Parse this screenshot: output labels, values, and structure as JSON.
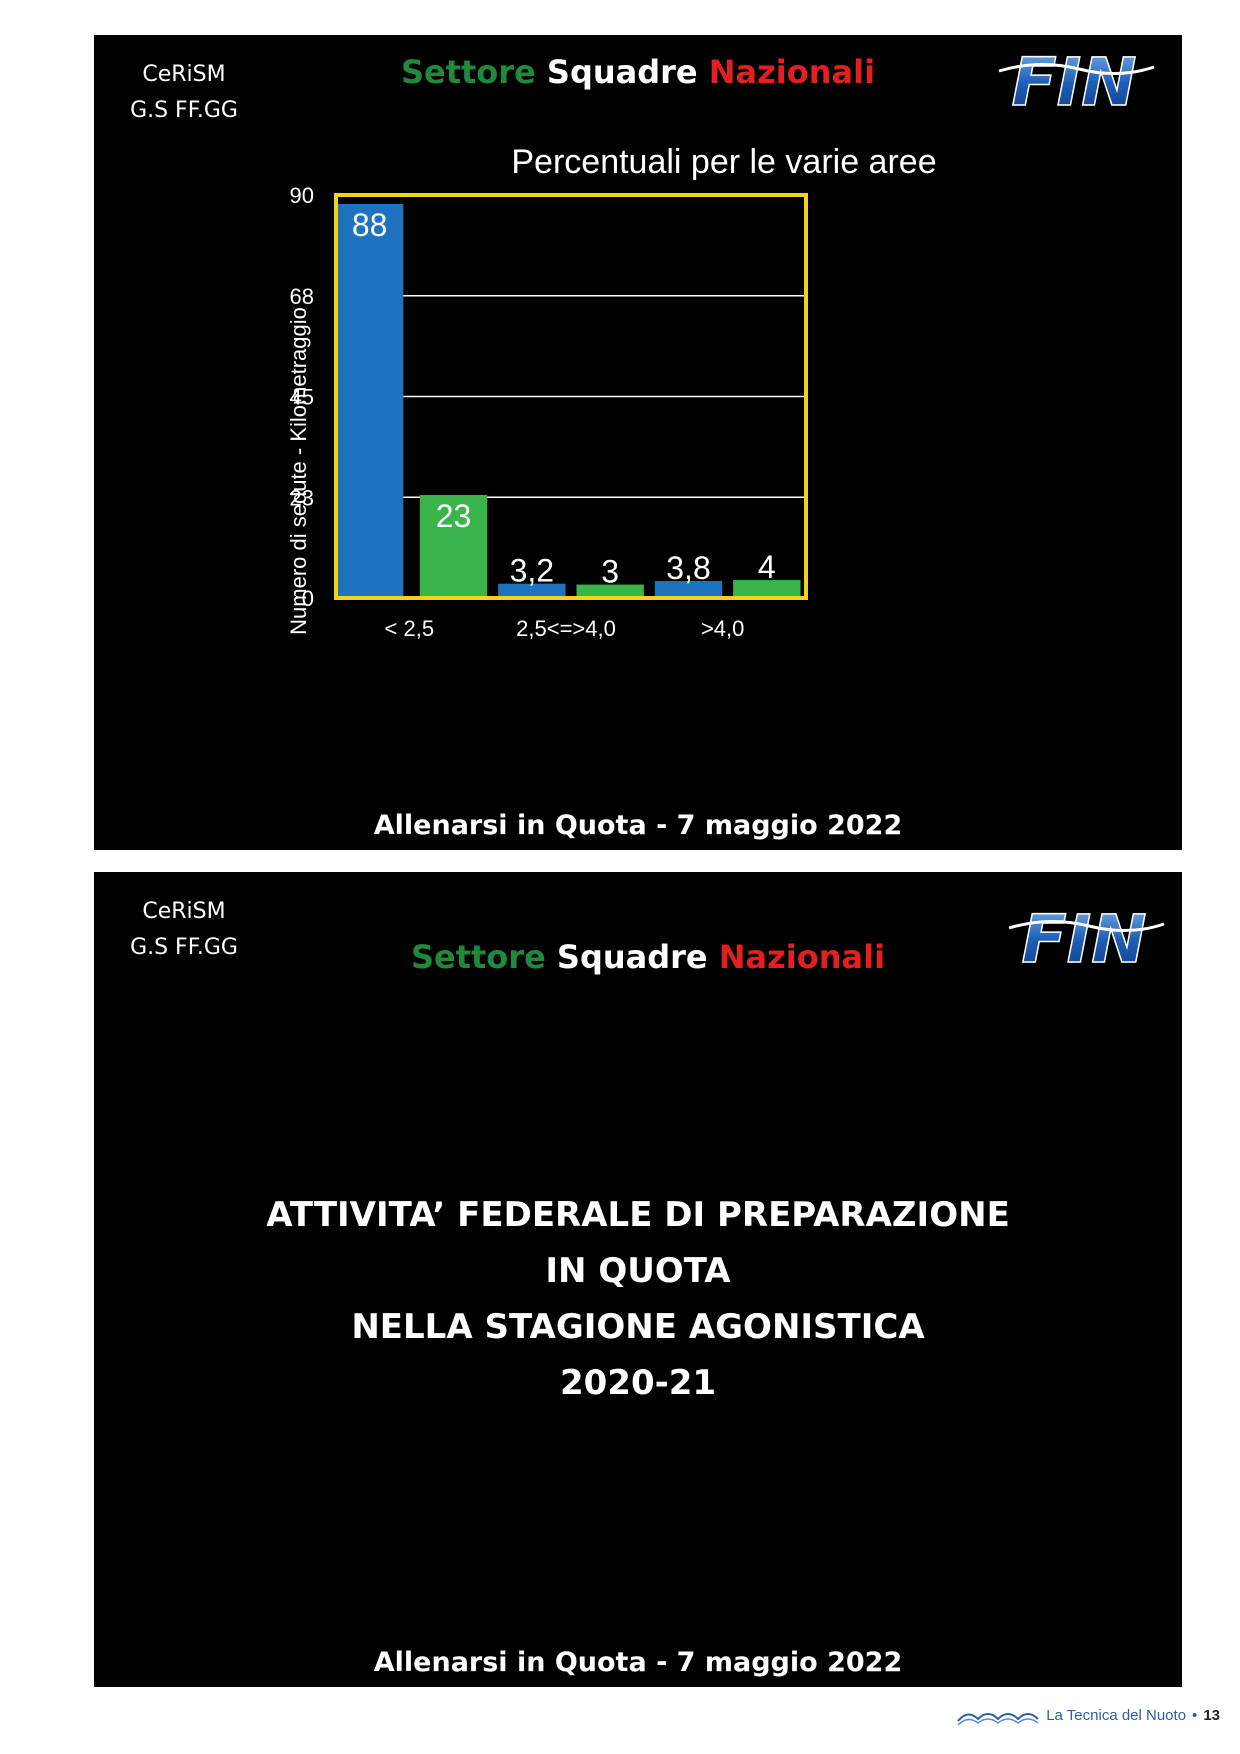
{
  "slide1": {
    "org_line1": "CeRiSM",
    "org_line2": "G.S FF.GG",
    "sector": {
      "w1": "Settore",
      "w2": "Squadre",
      "w3": "Nazionali"
    },
    "logo_text": "FIN",
    "footer": "Allenarsi in Quota - 7 maggio 2022"
  },
  "chart_data": {
    "type": "bar",
    "title": "Percentuali per le varie aree",
    "ylabel": "Numero di sedute - Kilometraggio",
    "xlabel": "",
    "ylim": [
      0,
      90
    ],
    "yticks": [
      "0",
      "23",
      "45",
      "68",
      "90"
    ],
    "ytick_values": [
      0,
      22.5,
      45,
      67.5,
      90
    ],
    "categories": [
      "< 2,5",
      "2,5<=>4,0",
      ">4,0"
    ],
    "bars": [
      {
        "category": "< 2,5",
        "value": 88,
        "label": "88",
        "color": "#1e73be"
      },
      {
        "category": "< 2,5",
        "value": 23,
        "label": "23",
        "color": "#3ab54a"
      },
      {
        "category": "2,5<=>4,0",
        "value": 3.2,
        "label": "3,2",
        "color": "#1e73be"
      },
      {
        "category": "2,5<=>4,0",
        "value": 3,
        "label": "3",
        "color": "#3ab54a"
      },
      {
        "category": ">4,0",
        "value": 3.8,
        "label": "3,8",
        "color": "#1e73be"
      },
      {
        "category": ">4,0",
        "value": 4,
        "label": "4",
        "color": "#3ab54a"
      }
    ],
    "frame_color": "#f2d21b",
    "grid": true
  },
  "slide2": {
    "org_line1": "CeRiSM",
    "org_line2": "G.S FF.GG",
    "sector": {
      "w1": "Settore",
      "w2": "Squadre",
      "w3": "Nazionali"
    },
    "logo_text": "FIN",
    "title_lines": [
      "ATTIVITA’ FEDERALE DI PREPARAZIONE",
      "IN QUOTA",
      "NELLA STAGIONE AGONISTICA",
      "2020-21"
    ],
    "footer": "Allenarsi in Quota - 7 maggio 2022"
  },
  "page_footer": {
    "publication": "La Tecnica del Nuoto",
    "separator": "•",
    "page_number": "13"
  }
}
